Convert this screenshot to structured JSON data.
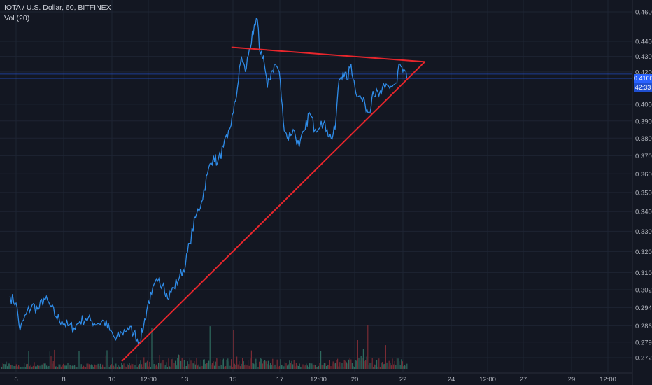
{
  "header": {
    "symbol_line": "IOTA / U.S. Dollar, 60, BITFINEX",
    "indicator": "Vol (20)"
  },
  "price_tag": {
    "price": "0.4160",
    "countdown": "42:33"
  },
  "colors": {
    "background": "#131722",
    "grid": "#1e2433",
    "line": "#2f8ce8",
    "trendline": "#e8262c",
    "vol_up": "#2e6a5e",
    "vol_down": "#7a2b34",
    "price_tag": "#2962ff",
    "current_line": "#2962ff",
    "text": "#b2b5be"
  },
  "chart_data": {
    "type": "line",
    "title": "IOTA / U.S. Dollar, 60, BITFINEX",
    "xlabel": "",
    "ylabel": "",
    "y_scale": "log",
    "ylim": [
      0.269,
      0.47
    ],
    "x_ticks": [
      "6",
      "8",
      "10",
      "12:00",
      "13",
      "15",
      "17",
      "12:00",
      "20",
      "22",
      "24",
      "12:00",
      "27",
      "29",
      "12:00"
    ],
    "y_ticks": [
      "0.4600",
      "0.4400",
      "0.4300",
      "0.4200",
      "0.4000",
      "0.3900",
      "0.3800",
      "0.3700",
      "0.3600",
      "0.3500",
      "0.3400",
      "0.3300",
      "0.3200",
      "0.3100",
      "0.3020",
      "0.2940",
      "0.2860",
      "0.2790",
      "0.2725"
    ],
    "series": [
      {
        "type": "line",
        "points": [
          [
            "Aug 5 18:00",
            0.299
          ],
          [
            "Aug 6 00:00",
            0.296
          ],
          [
            "Aug 6 04:00",
            0.284
          ],
          [
            "Aug 6 10:00",
            0.291
          ],
          [
            "Aug 6 16:00",
            0.295
          ],
          [
            "Aug 6 22:00",
            0.293
          ],
          [
            "Aug 7 04:00",
            0.298
          ],
          [
            "Aug 7 10:00",
            0.295
          ],
          [
            "Aug 7 16:00",
            0.29
          ],
          [
            "Aug 7 22:00",
            0.288
          ],
          [
            "Aug 8 04:00",
            0.286
          ],
          [
            "Aug 8 10:00",
            0.285
          ],
          [
            "Aug 8 16:00",
            0.288
          ],
          [
            "Aug 8 22:00",
            0.289
          ],
          [
            "Aug 9 04:00",
            0.288
          ],
          [
            "Aug 9 10:00",
            0.287
          ],
          [
            "Aug 9 16:00",
            0.288
          ],
          [
            "Aug 9 22:00",
            0.284
          ],
          [
            "Aug 10 04:00",
            0.28
          ],
          [
            "Aug 10 10:00",
            0.283
          ],
          [
            "Aug 10 16:00",
            0.285
          ],
          [
            "Aug 10 22:00",
            0.283
          ],
          [
            "Aug 11 04:00",
            0.279
          ],
          [
            "Aug 11 08:00",
            0.286
          ],
          [
            "Aug 11 12:00",
            0.295
          ],
          [
            "Aug 11 16:00",
            0.3
          ],
          [
            "Aug 11 22:00",
            0.306
          ],
          [
            "Aug 12 04:00",
            0.305
          ],
          [
            "Aug 12 08:00",
            0.298
          ],
          [
            "Aug 12 14:00",
            0.303
          ],
          [
            "Aug 12 20:00",
            0.308
          ],
          [
            "Aug 13 02:00",
            0.314
          ],
          [
            "Aug 13 06:00",
            0.324
          ],
          [
            "Aug 13 12:00",
            0.337
          ],
          [
            "Aug 13 18:00",
            0.345
          ],
          [
            "Aug 14 00:00",
            0.36
          ],
          [
            "Aug 14 06:00",
            0.37
          ],
          [
            "Aug 14 10:00",
            0.366
          ],
          [
            "Aug 14 16:00",
            0.375
          ],
          [
            "Aug 14 20:00",
            0.38
          ],
          [
            "Aug 15 02:00",
            0.395
          ],
          [
            "Aug 15 06:00",
            0.41
          ],
          [
            "Aug 15 10:00",
            0.43
          ],
          [
            "Aug 15 14:00",
            0.42
          ],
          [
            "Aug 15 18:00",
            0.435
          ],
          [
            "Aug 15 22:00",
            0.445
          ],
          [
            "Aug 16 02:00",
            0.455
          ],
          [
            "Aug 16 04:00",
            0.435
          ],
          [
            "Aug 16 08:00",
            0.43
          ],
          [
            "Aug 16 12:00",
            0.41
          ],
          [
            "Aug 16 16:00",
            0.42
          ],
          [
            "Aug 16 20:00",
            0.425
          ],
          [
            "Aug 17 00:00",
            0.42
          ],
          [
            "Aug 17 04:00",
            0.39
          ],
          [
            "Aug 17 08:00",
            0.38
          ],
          [
            "Aug 17 14:00",
            0.385
          ],
          [
            "Aug 17 20:00",
            0.375
          ],
          [
            "Aug 18 02:00",
            0.385
          ],
          [
            "Aug 18 06:00",
            0.395
          ],
          [
            "Aug 18 12:00",
            0.385
          ],
          [
            "Aug 18 18:00",
            0.39
          ],
          [
            "Aug 19 00:00",
            0.385
          ],
          [
            "Aug 19 04:00",
            0.38
          ],
          [
            "Aug 19 08:00",
            0.385
          ],
          [
            "Aug 19 12:00",
            0.415
          ],
          [
            "Aug 19 16:00",
            0.42
          ],
          [
            "Aug 19 20:00",
            0.415
          ],
          [
            "Aug 20 00:00",
            0.425
          ],
          [
            "Aug 20 04:00",
            0.41
          ],
          [
            "Aug 20 08:00",
            0.405
          ],
          [
            "Aug 20 14:00",
            0.4
          ],
          [
            "Aug 20 18:00",
            0.395
          ],
          [
            "Aug 20 22:00",
            0.408
          ],
          [
            "Aug 21 04:00",
            0.405
          ],
          [
            "Aug 21 10:00",
            0.41
          ],
          [
            "Aug 21 16:00",
            0.411
          ],
          [
            "Aug 21 22:00",
            0.413
          ],
          [
            "Aug 22 00:00",
            0.425
          ],
          [
            "Aug 22 04:00",
            0.42
          ],
          [
            "Aug 22 08:00",
            0.416
          ]
        ]
      },
      {
        "type": "trendline",
        "role": "upper resistance",
        "points": [
          [
            "Aug 15 00:00",
            0.436
          ],
          [
            "Aug 23 02:00",
            0.4265
          ]
        ]
      },
      {
        "type": "trendline",
        "role": "lower support",
        "points": [
          [
            "Aug 10 10:00",
            0.271
          ],
          [
            "Aug 23 02:00",
            0.4265
          ]
        ]
      }
    ],
    "current_price": 0.416,
    "volume": {
      "indicator": "Vol (20)",
      "colors": [
        "up",
        "down"
      ]
    },
    "grid": true
  }
}
